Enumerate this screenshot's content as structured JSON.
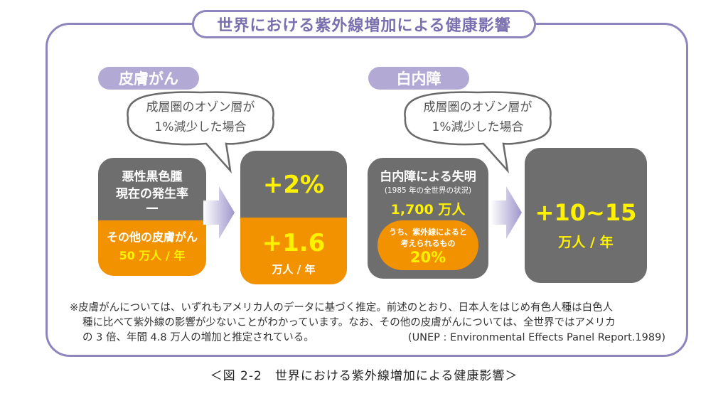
{
  "title": "世界における紫外線増加による健康影響",
  "left": {
    "label": "皮膚がん",
    "bubble": [
      "成層圏のオゾン層が",
      "1%減少した場合"
    ],
    "base_top": [
      "悪性黒色腫",
      "現在の発生率"
    ],
    "base_dash": "—",
    "base_bottom": [
      "その他の皮膚がん",
      "50 万人 / 年"
    ],
    "result_top": "+2%",
    "result_bottom_value": "+1.6",
    "result_bottom_unit": "万人 / 年"
  },
  "right": {
    "label": "白内障",
    "bubble": [
      "成層圏のオゾン層が",
      "1%減少した場合"
    ],
    "base_title": "白内障による失明",
    "base_note": "(1985 年の全世界の状況)",
    "base_value": "1,700 万人",
    "inner_text": [
      "うち、紫外線によると",
      "考えられるもの"
    ],
    "inner_value": "20%",
    "result_value": "+10~15",
    "result_unit": "万人 / 年"
  },
  "footnote": {
    "lines": [
      "※皮膚がんについては、いずれもアメリカ人のデータに基づく推定。前述のとおり、日本人をはじめ有色人種は白色人",
      "種に比べて紫外線の影響が少ないことがわかっています。なお、その他の皮膚がんについては、全世界ではアメリカ",
      "の 3 倍、年間 4.8 万人の増加と推定されている。"
    ],
    "source": "(UNEP : Environmental Effects Panel Report.1989)"
  },
  "caption": "＜図 2-2　世界における紫外線増加による健康影響＞",
  "colors": {
    "purple": "#8e85bd",
    "lavender": "#b2a9d4",
    "gray": "#6e6e6e",
    "orange": "#f29200",
    "yellow": "#fff200"
  }
}
